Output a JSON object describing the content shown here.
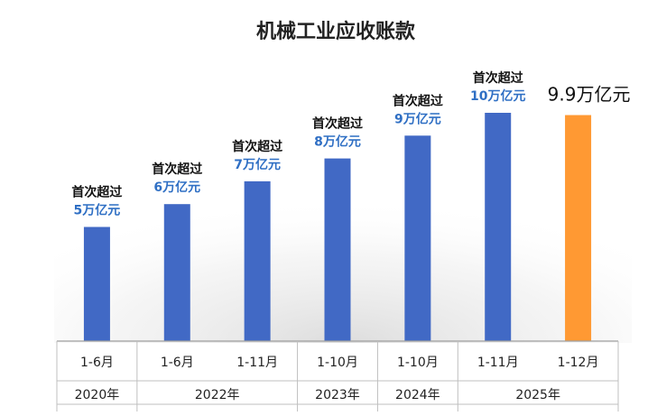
{
  "chart_data": {
    "type": "bar",
    "title": "机械工业应收账款",
    "categories": [
      "1-6月",
      "1-6月",
      "1-11月",
      "1-10月",
      "1-10月",
      "1-11月",
      "1-12月"
    ],
    "years": [
      {
        "label": "2020年",
        "span": 1
      },
      {
        "label": "2022年",
        "span": 2
      },
      {
        "label": "2023年",
        "span": 1
      },
      {
        "label": "2024年",
        "span": 1
      },
      {
        "label": "2025年",
        "span": 2
      }
    ],
    "values": [
      5.0,
      6.0,
      7.0,
      8.0,
      9.0,
      10.0,
      9.9
    ],
    "annotations": [
      {
        "line1": "首次超过",
        "line2": "5万亿元"
      },
      {
        "line1": "首次超过",
        "line2": "6万亿元"
      },
      {
        "line1": "首次超过",
        "line2": "7万亿元"
      },
      {
        "line1": "首次超过",
        "line2": "8万亿元"
      },
      {
        "line1": "首次超过",
        "line2": "9万亿元"
      },
      {
        "line1": "首次超过",
        "line2": "10万亿元"
      },
      {
        "line1": "9.9万亿元",
        "line2": ""
      }
    ],
    "colors": {
      "bar": "#4169C5",
      "highlight": "#FF9933",
      "annotation_blue": "#2F6FC4"
    },
    "highlight_index": 6,
    "legend": "none",
    "grid": false
  }
}
